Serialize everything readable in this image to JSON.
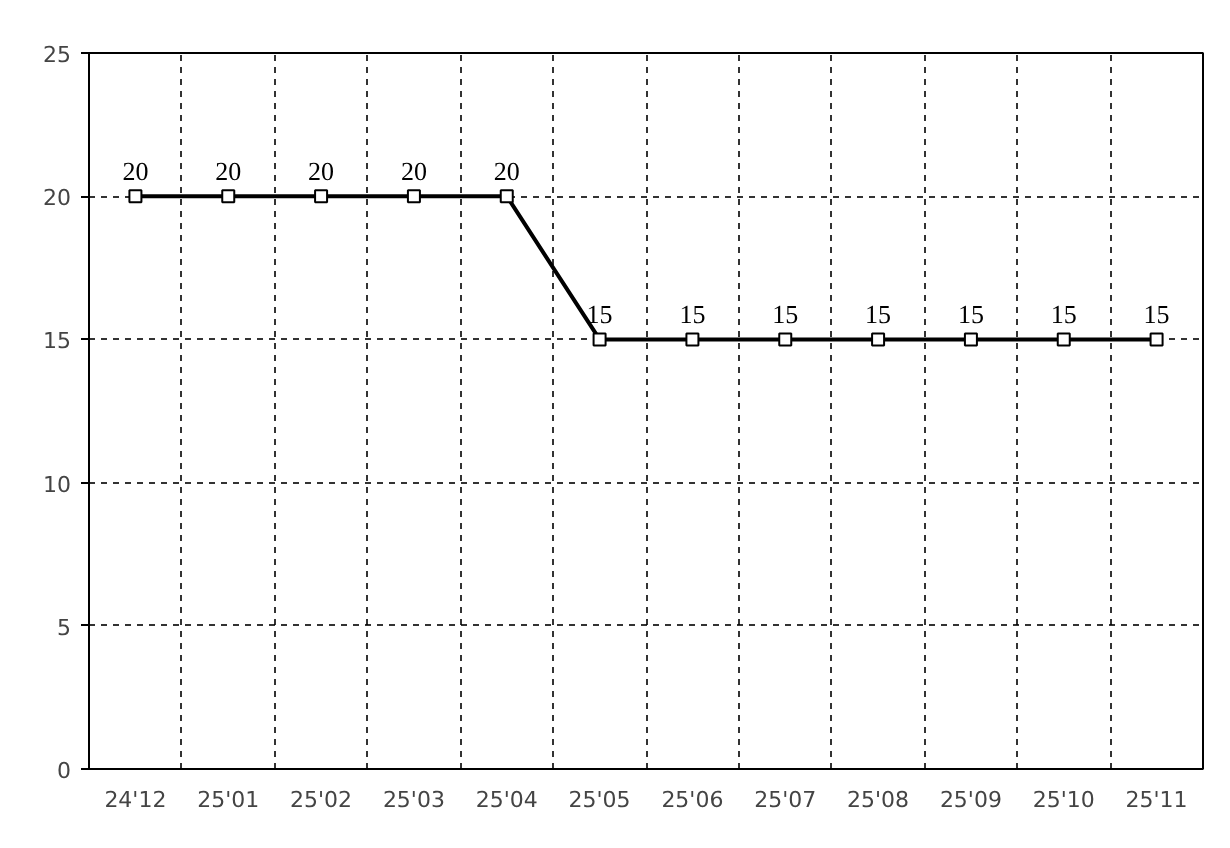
{
  "chart_data": {
    "type": "line",
    "categories": [
      "24'12",
      "25'01",
      "25'02",
      "25'03",
      "25'04",
      "25'05",
      "25'06",
      "25'07",
      "25'08",
      "25'09",
      "25'10",
      "25'11"
    ],
    "series": [
      {
        "color": "#000000",
        "values": [
          20,
          20,
          20,
          20,
          20,
          15,
          15,
          15,
          15,
          15,
          15,
          15
        ]
      }
    ],
    "ylim": [
      0,
      25
    ],
    "yticks": [
      0,
      5,
      10,
      15,
      20,
      25
    ],
    "grid": true,
    "marker": "square",
    "line_style": "solid",
    "data_labels": true
  }
}
